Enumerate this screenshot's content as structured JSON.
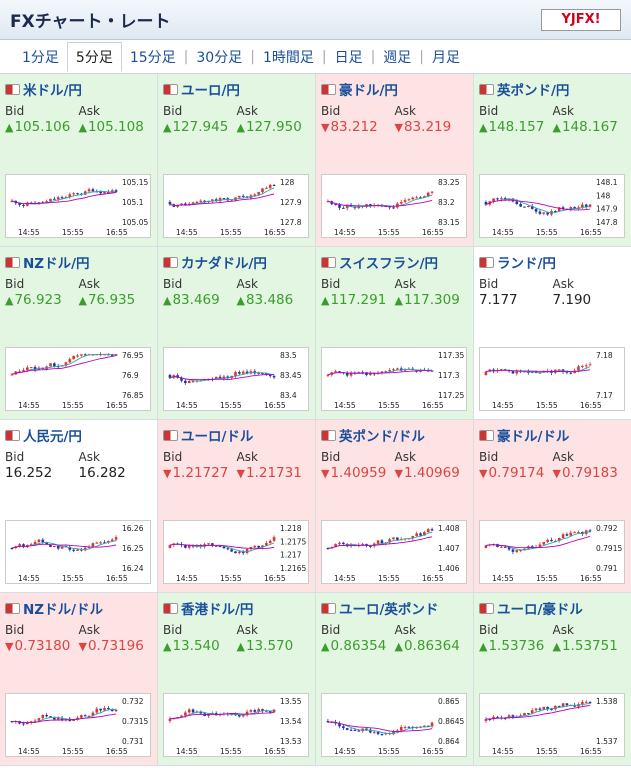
{
  "header": {
    "title": "FXチャート・レート",
    "logo_text": "YJFX!"
  },
  "tabs": [
    "1分足",
    "5分足",
    "15分足",
    "30分足",
    "1時間足",
    "日足",
    "週足",
    "月足"
  ],
  "active_tab": "5分足",
  "bid_label": "Bid",
  "ask_label": "Ask",
  "x_ticks": [
    "14:55",
    "15:55",
    "16:55"
  ],
  "colors": {
    "up_bg": "#e3f6e1",
    "down_bg": "#fde3e3",
    "up_text": "#3a9e2c",
    "down_text": "#d44",
    "candle_up": "#d33",
    "candle_down": "#2233aa",
    "ma1": "#2aa",
    "ma2": "#b0b"
  },
  "pairs": [
    {
      "name": "米ドル/円",
      "dir": "up",
      "arrow": "▲",
      "bid": "105.106",
      "ask": "105.108",
      "y_ticks": [
        "105.15",
        "105.1",
        "105.05"
      ]
    },
    {
      "name": "ユーロ/円",
      "dir": "up",
      "arrow": "▲",
      "bid": "127.945",
      "ask": "127.950",
      "y_ticks": [
        "128",
        "127.9",
        "127.8"
      ]
    },
    {
      "name": "豪ドル/円",
      "dir": "down",
      "arrow": "▼",
      "bid": "83.212",
      "ask": "83.219",
      "y_ticks": [
        "83.25",
        "83.2",
        "83.15"
      ]
    },
    {
      "name": "英ポンド/円",
      "dir": "up",
      "arrow": "▲",
      "bid": "148.157",
      "ask": "148.167",
      "y_ticks": [
        "148.1",
        "148",
        "147.9",
        "147.8"
      ]
    },
    {
      "name": "NZドル/円",
      "dir": "up",
      "arrow": "▲",
      "bid": "76.923",
      "ask": "76.935",
      "y_ticks": [
        "76.95",
        "76.9",
        "76.85"
      ]
    },
    {
      "name": "カナダドル/円",
      "dir": "up",
      "arrow": "▲",
      "bid": "83.469",
      "ask": "83.486",
      "y_ticks": [
        "83.5",
        "83.45",
        "83.4"
      ]
    },
    {
      "name": "スイスフラン/円",
      "dir": "up",
      "arrow": "▲",
      "bid": "117.291",
      "ask": "117.309",
      "y_ticks": [
        "117.35",
        "117.3",
        "117.25"
      ]
    },
    {
      "name": "ランド/円",
      "dir": "flat",
      "arrow": "",
      "bid": "7.177",
      "ask": "7.190",
      "y_ticks": [
        "7.18",
        "7.17"
      ]
    },
    {
      "name": "人民元/円",
      "dir": "flat",
      "arrow": "",
      "bid": "16.252",
      "ask": "16.282",
      "y_ticks": [
        "16.26",
        "16.25",
        "16.24"
      ]
    },
    {
      "name": "ユーロ/ドル",
      "dir": "down",
      "arrow": "▼",
      "bid": "1.21727",
      "ask": "1.21731",
      "y_ticks": [
        "1.218",
        "1.2175",
        "1.217",
        "1.2165"
      ]
    },
    {
      "name": "英ポンド/ドル",
      "dir": "down",
      "arrow": "▼",
      "bid": "1.40959",
      "ask": "1.40969",
      "y_ticks": [
        "1.408",
        "1.407",
        "1.406"
      ]
    },
    {
      "name": "豪ドル/ドル",
      "dir": "down",
      "arrow": "▼",
      "bid": "0.79174",
      "ask": "0.79183",
      "y_ticks": [
        "0.792",
        "0.7915",
        "0.791"
      ]
    },
    {
      "name": "NZドル/ドル",
      "dir": "down",
      "arrow": "▼",
      "bid": "0.73180",
      "ask": "0.73196",
      "y_ticks": [
        "0.732",
        "0.7315",
        "0.731"
      ]
    },
    {
      "name": "香港ドル/円",
      "dir": "up",
      "arrow": "▲",
      "bid": "13.540",
      "ask": "13.570",
      "y_ticks": [
        "13.55",
        "13.54",
        "13.53"
      ]
    },
    {
      "name": "ユーロ/英ポンド",
      "dir": "up",
      "arrow": "▲",
      "bid": "0.86354",
      "ask": "0.86364",
      "y_ticks": [
        "0.865",
        "0.8645",
        "0.864"
      ]
    },
    {
      "name": "ユーロ/豪ドル",
      "dir": "up",
      "arrow": "▲",
      "bid": "1.53736",
      "ask": "1.53751",
      "y_ticks": [
        "1.538",
        "1.537"
      ]
    }
  ]
}
